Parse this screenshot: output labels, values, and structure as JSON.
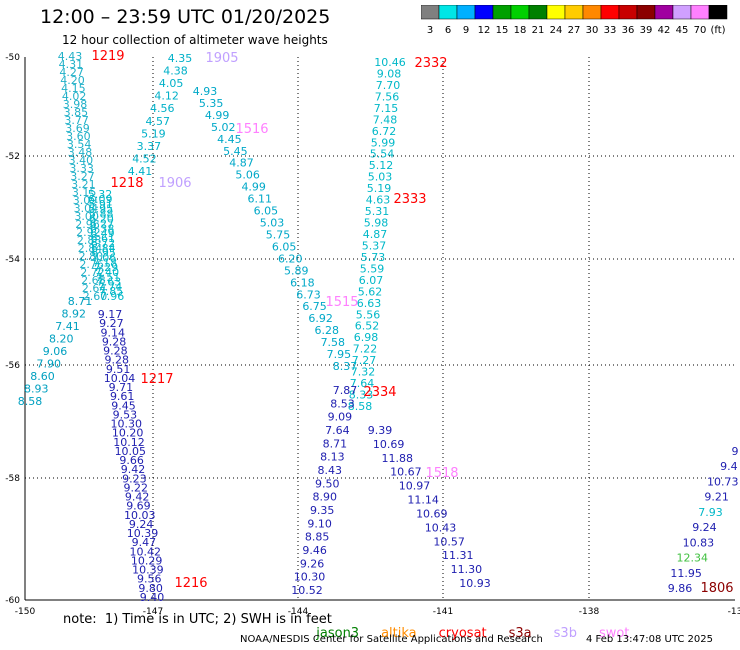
{
  "header": {
    "title": "12:00 – 23:59 UTC 01/20/2025",
    "subtitle": "12 hour collection of altimeter wave heights"
  },
  "color_scale": {
    "labels": [
      "3",
      "6",
      "9",
      "12",
      "15",
      "18",
      "21",
      "24",
      "27",
      "30",
      "33",
      "36",
      "39",
      "42",
      "45",
      "70",
      "(ft)"
    ],
    "colors": [
      "#808080",
      "#00e6e6",
      "#00b0ff",
      "#0000ff",
      "#00a000",
      "#00d000",
      "#008000",
      "#ffff00",
      "#ffcc00",
      "#ff8800",
      "#ff0000",
      "#c80000",
      "#8b0000",
      "#a000a0",
      "#d0a0ff",
      "#ff80ff",
      "#000000"
    ]
  },
  "axes": {
    "x_ticks": [
      "-150",
      "-147",
      "-144",
      "-141",
      "-138",
      "-13"
    ],
    "y_ticks": [
      "-50",
      "-52",
      "-54",
      "-56",
      "-58",
      "-60"
    ]
  },
  "passes": [
    {
      "id": "1219",
      "color": "#ff0000"
    },
    {
      "id": "1218",
      "color": "#ff0000"
    },
    {
      "id": "1217",
      "color": "#ff0000"
    },
    {
      "id": "1216",
      "color": "#ff0000"
    },
    {
      "id": "1906",
      "color": "#c0a0ff"
    },
    {
      "id": "1905",
      "color": "#c0a0ff"
    },
    {
      "id": "1516",
      "color": "#ff80ff"
    },
    {
      "id": "1515",
      "color": "#ff80ff"
    },
    {
      "id": "1518",
      "color": "#ff80ff"
    },
    {
      "id": "2332",
      "color": "#ff0000"
    },
    {
      "id": "2333",
      "color": "#ff0000"
    },
    {
      "id": "2334",
      "color": "#ff0000"
    },
    {
      "id": "1806",
      "color": "#8b0000"
    }
  ],
  "tracks": {
    "left_band": {
      "values": [
        "4.43",
        "4.31",
        "4.27",
        "4.20",
        "4.15",
        "4.02",
        "3.98",
        "3.85",
        "3.77",
        "3.69",
        "3.60",
        "3.54",
        "3.48",
        "3.40",
        "3.33",
        "3.27",
        "3.21",
        "3.15",
        "3.09",
        "3.04",
        "3.00",
        "2.96",
        "2.92",
        "2.88",
        "2.84",
        "2.80",
        "2.76",
        "2.72",
        "2.68",
        "2.64",
        "2.60"
      ],
      "color": "#20b0c8"
    },
    "band_a": {
      "values": [
        "5.32",
        "6.09",
        "5.91",
        "5.95",
        "5.88",
        "6.20",
        "6.27",
        "6.38",
        "6.49",
        "6.61",
        "6.72",
        "6.84",
        "6.95",
        "7.06",
        "7.18",
        "7.29",
        "7.40",
        "7.51",
        "7.63",
        "7.74",
        "7.85",
        "7.96"
      ],
      "color": "#00b8c8"
    },
    "pass_1219_west": {
      "values": [
        "8.71",
        "8.92",
        "7.41",
        "8.20",
        "9.06",
        "7.90",
        "8.60",
        "8.93",
        "8.58"
      ],
      "color": "#00a0c0"
    },
    "pass_blue_left": {
      "values": [
        "9.17",
        "9.27",
        "9.14",
        "9.28",
        "9.28",
        "9.28",
        "9.51",
        "10.04",
        "9.71",
        "9.61",
        "9.45",
        "9.53",
        "10.30",
        "10.20",
        "10.12",
        "10.05",
        "9.66",
        "9.42",
        "9.23",
        "9.22",
        "9.42",
        "9.69",
        "10.03",
        "9.24",
        "10.39",
        "9.47",
        "10.42",
        "10.29",
        "10.39",
        "9.56",
        "9.80",
        "9.40"
      ],
      "color": "#2020b0"
    },
    "pass_cyan_mid": {
      "values": [
        "4.35",
        "4.38",
        "4.05",
        "4.12",
        "4.56",
        "4.57",
        "5.19",
        "3.37",
        "4.52",
        "4.41"
      ],
      "color": "#00b0c8"
    },
    "pass_1516": {
      "values": [
        "4.93",
        "5.35",
        "4.99",
        "5.02",
        "4.45",
        "5.45",
        "4.87",
        "5.06",
        "4.99",
        "6.11",
        "6.05",
        "5.03",
        "5.75",
        "6.05",
        "6.20",
        "5.89",
        "6.18",
        "6.73",
        "6.75",
        "6.92",
        "6.28",
        "7.58",
        "7.95",
        "8.37"
      ],
      "color": "#00a8c8"
    },
    "pass_2332": {
      "values": [
        "10.46",
        "9.08",
        "7.70",
        "7.56",
        "7.15",
        "7.48",
        "6.72",
        "5.99",
        "5.54",
        "5.12",
        "5.03",
        "5.19",
        "4.63",
        "5.31",
        "5.98",
        "4.87",
        "5.37",
        "5.73",
        "5.59",
        "6.07",
        "5.62",
        "6.63",
        "5.56",
        "6.52",
        "6.98",
        "7.22",
        "7.27",
        "7.32",
        "7.64",
        "8.33",
        "8.58"
      ],
      "color": "#00b8c8"
    },
    "pass_2334": {
      "values": [
        "7.87",
        "8.53",
        "9.09",
        "7.64",
        "8.71",
        "8.13",
        "8.43",
        "9.50",
        "8.90",
        "9.35",
        "9.10",
        "8.85",
        "9.46",
        "9.26",
        "10.30",
        "10.52"
      ],
      "color": "#2020b0"
    },
    "pass_2334_south": {
      "values": [
        "9.39",
        "10.69",
        "11.88",
        "10.67",
        "10.97",
        "11.14",
        "10.69",
        "10.43",
        "10.57",
        "11.31",
        "11.30",
        "10.93"
      ],
      "color": "#2020b0"
    },
    "pass_east": {
      "values": [
        "9",
        "9.4",
        "10.73",
        "9.21",
        "7.93",
        "9.24",
        "10.83",
        "12.34",
        "11.95",
        "9.86"
      ],
      "colors": [
        "#2020b0",
        "#2020b0",
        "#2020b0",
        "#2020b0",
        "#00b8c8",
        "#2020b0",
        "#2020b0",
        "#40c040",
        "#2020b0",
        "#2020b0"
      ]
    }
  },
  "footer": {
    "note": "note:  1) Time is in UTC; 2) SWH is in feet",
    "satellites": [
      {
        "name": "jason3",
        "color": "#008000"
      },
      {
        "name": "altika",
        "color": "#ff8c00"
      },
      {
        "name": "cryosat",
        "color": "#ff0000"
      },
      {
        "name": "s3a",
        "color": "#8b0000"
      },
      {
        "name": "s3b",
        "color": "#c0a0ff"
      },
      {
        "name": "swot",
        "color": "#ff80ff"
      }
    ],
    "credit": "NOAA/NESDIS Center for Satellite Applications and Research",
    "timestamp": "4 Feb 13:47:08 UTC 2025"
  }
}
